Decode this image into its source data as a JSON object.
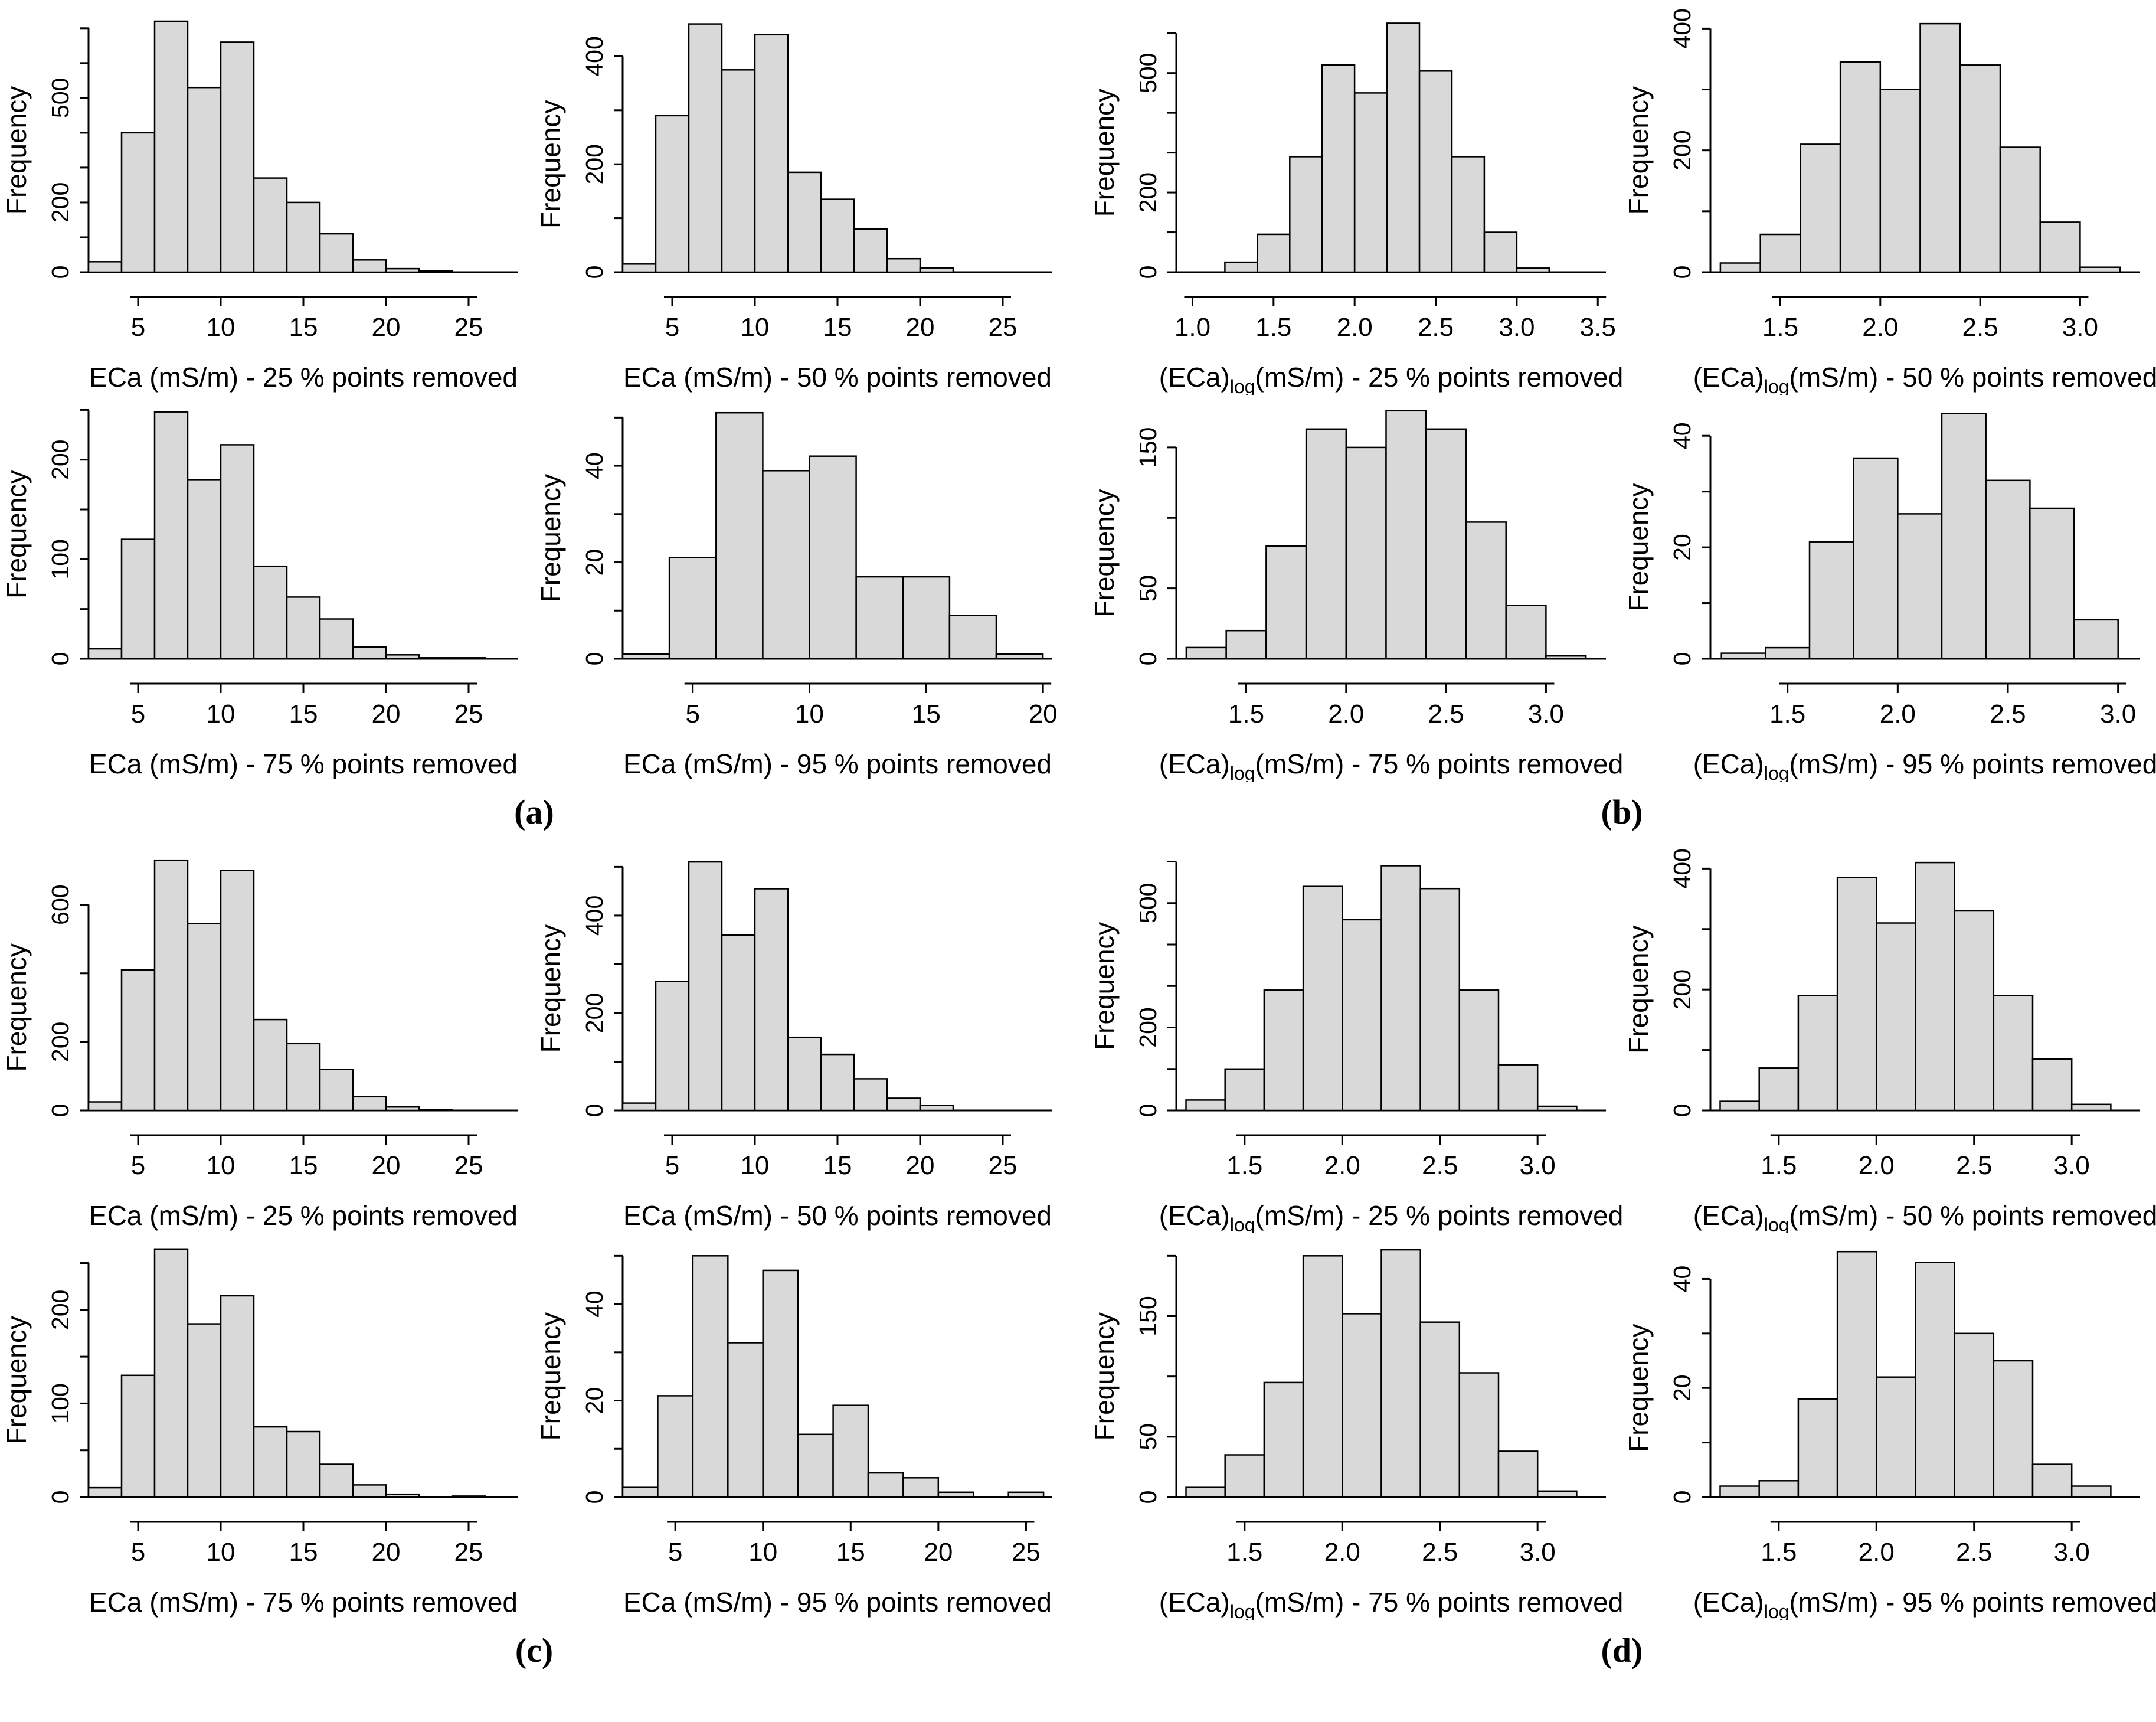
{
  "figure": {
    "ylabel": "Frequency",
    "bar_fill": "#d9d9d9",
    "bar_stroke": "#000000",
    "text_color": "#000000",
    "group_labels": [
      "(a)",
      "(b)",
      "(c)",
      "(d)"
    ]
  },
  "chart_data": [
    {
      "id": "a-25",
      "group": "a",
      "type": "bar",
      "xlabel": "ECa (mS/m) - 25 % points removed",
      "xlabel_parts": {
        "pre": "ECa (mS/m) - 25 % points removed",
        "sub": "",
        "post": ""
      },
      "ylabel": "Frequency",
      "bins": {
        "start": 2,
        "width": 2,
        "counts": [
          30,
          400,
          720,
          530,
          660,
          270,
          200,
          110,
          35,
          10,
          3
        ]
      },
      "x_ticks": [
        5,
        10,
        15,
        20,
        25
      ],
      "x_range": [
        2,
        28
      ],
      "y_ticks": {
        "step": 100,
        "max": 700
      },
      "y_labeled": [
        0,
        200,
        500
      ],
      "ylim": 720
    },
    {
      "id": "a-50",
      "group": "a",
      "type": "bar",
      "xlabel": "ECa (mS/m) - 50 % points removed",
      "xlabel_parts": {
        "pre": "ECa (mS/m) - 50 % points removed",
        "sub": "",
        "post": ""
      },
      "ylabel": "Frequency",
      "bins": {
        "start": 2,
        "width": 2,
        "counts": [
          15,
          290,
          460,
          375,
          440,
          185,
          135,
          80,
          25,
          8
        ]
      },
      "x_ticks": [
        5,
        10,
        15,
        20,
        25
      ],
      "x_range": [
        2,
        28
      ],
      "y_ticks": {
        "step": 100,
        "max": 400
      },
      "y_labeled": [
        0,
        200,
        400
      ],
      "ylim": 465
    },
    {
      "id": "b-25",
      "group": "b",
      "type": "bar",
      "xlabel": "(ECa)log(mS/m) - 25 % points removed",
      "xlabel_parts": {
        "pre": "(ECa)",
        "sub": "log",
        "post": "(mS/m) - 25 % points removed"
      },
      "ylabel": "Frequency",
      "bins": {
        "start": 1.2,
        "width": 0.2,
        "counts": [
          25,
          95,
          290,
          520,
          450,
          625,
          505,
          290,
          100,
          10
        ]
      },
      "x_ticks": [
        1.0,
        1.5,
        2.0,
        2.5,
        3.0,
        3.5
      ],
      "x_range": [
        0.9,
        3.55
      ],
      "y_ticks": {
        "step": 100,
        "max": 600
      },
      "y_labeled": [
        0,
        200,
        500
      ],
      "ylim": 630
    },
    {
      "id": "b-50",
      "group": "b",
      "type": "bar",
      "xlabel": "(ECa)log(mS/m) - 50 % points removed",
      "xlabel_parts": {
        "pre": "(ECa)",
        "sub": "log",
        "post": "(mS/m) - 50 % points removed"
      },
      "ylabel": "Frequency",
      "bins": {
        "start": 1.2,
        "width": 0.2,
        "counts": [
          15,
          62,
          210,
          345,
          300,
          408,
          340,
          205,
          82,
          8
        ]
      },
      "x_ticks": [
        1.5,
        2.0,
        2.5,
        3.0
      ],
      "x_range": [
        1.15,
        3.3
      ],
      "y_ticks": {
        "step": 100,
        "max": 400
      },
      "y_labeled": [
        0,
        200,
        400
      ],
      "ylim": 412
    },
    {
      "id": "a-75",
      "group": "a",
      "type": "bar",
      "xlabel": "ECa (mS/m) - 75 % points removed",
      "xlabel_parts": {
        "pre": "ECa (mS/m) - 75 % points removed",
        "sub": "",
        "post": ""
      },
      "ylabel": "Frequency",
      "bins": {
        "start": 2,
        "width": 2,
        "counts": [
          10,
          120,
          248,
          180,
          215,
          93,
          62,
          40,
          12,
          4,
          1,
          1
        ]
      },
      "x_ticks": [
        5,
        10,
        15,
        20,
        25
      ],
      "x_range": [
        2,
        28
      ],
      "y_ticks": {
        "step": 50,
        "max": 250
      },
      "y_labeled": [
        0,
        100,
        200
      ],
      "ylim": 252
    },
    {
      "id": "a-95",
      "group": "a",
      "type": "bar",
      "xlabel": "ECa (mS/m) - 95 % points removed",
      "xlabel_parts": {
        "pre": "ECa (mS/m) - 95 % points removed",
        "sub": "",
        "post": ""
      },
      "ylabel": "Frequency",
      "bins": {
        "start": 2,
        "width": 2,
        "counts": [
          1,
          21,
          51,
          39,
          42,
          17,
          17,
          9,
          1
        ]
      },
      "x_ticks": [
        5,
        10,
        15,
        20
      ],
      "x_range": [
        2,
        20.4
      ],
      "y_ticks": {
        "step": 10,
        "max": 50
      },
      "y_labeled": [
        0,
        20,
        40
      ],
      "ylim": 52
    },
    {
      "id": "b-75",
      "group": "b",
      "type": "bar",
      "xlabel": "(ECa)log(mS/m) - 75 % points removed",
      "xlabel_parts": {
        "pre": "(ECa)",
        "sub": "log",
        "post": "(mS/m) - 75 % points removed"
      },
      "ylabel": "Frequency",
      "bins": {
        "start": 1.2,
        "width": 0.2,
        "counts": [
          8,
          20,
          80,
          163,
          150,
          176,
          163,
          97,
          38,
          2
        ]
      },
      "x_ticks": [
        1.5,
        2.0,
        2.5,
        3.0
      ],
      "x_range": [
        1.15,
        3.3
      ],
      "y_ticks": {
        "step": 50,
        "max": 150
      },
      "y_labeled": [
        0,
        50,
        150
      ],
      "ylim": 178
    },
    {
      "id": "b-95",
      "group": "b",
      "type": "bar",
      "xlabel": "(ECa)log(mS/m) - 95 % points removed",
      "xlabel_parts": {
        "pre": "(ECa)",
        "sub": "log",
        "post": "(mS/m) - 95 % points removed"
      },
      "ylabel": "Frequency",
      "bins": {
        "start": 1.2,
        "width": 0.2,
        "counts": [
          1,
          2,
          21,
          36,
          26,
          44,
          32,
          27,
          7
        ]
      },
      "x_ticks": [
        1.5,
        2.0,
        2.5,
        3.0
      ],
      "x_range": [
        1.15,
        3.1
      ],
      "y_ticks": {
        "step": 10,
        "max": 40
      },
      "y_labeled": [
        0,
        20,
        40
      ],
      "ylim": 45
    },
    {
      "id": "c-25",
      "group": "c",
      "type": "bar",
      "xlabel": "ECa (mS/m) - 25 % points removed",
      "xlabel_parts": {
        "pre": "ECa (mS/m) - 25 % points removed",
        "sub": "",
        "post": ""
      },
      "ylabel": "Frequency",
      "bins": {
        "start": 2,
        "width": 2,
        "counts": [
          25,
          410,
          730,
          545,
          700,
          265,
          195,
          120,
          40,
          10,
          3
        ]
      },
      "x_ticks": [
        5,
        10,
        15,
        20,
        25
      ],
      "x_range": [
        2,
        28
      ],
      "y_ticks": {
        "step": 200,
        "max": 600
      },
      "y_labeled": [
        0,
        200,
        600
      ],
      "ylim": 732
    },
    {
      "id": "c-50",
      "group": "c",
      "type": "bar",
      "xlabel": "ECa (mS/m) - 50 % points removed",
      "xlabel_parts": {
        "pre": "ECa (mS/m) - 50 % points removed",
        "sub": "",
        "post": ""
      },
      "ylabel": "Frequency",
      "bins": {
        "start": 2,
        "width": 2,
        "counts": [
          15,
          265,
          510,
          360,
          455,
          150,
          115,
          65,
          25,
          10
        ]
      },
      "x_ticks": [
        5,
        10,
        15,
        20,
        25
      ],
      "x_range": [
        2,
        28
      ],
      "y_ticks": {
        "step": 100,
        "max": 500
      },
      "y_labeled": [
        0,
        200,
        400
      ],
      "ylim": 515
    },
    {
      "id": "d-25",
      "group": "d",
      "type": "bar",
      "xlabel": "(ECa)log(mS/m) - 25 % points removed",
      "xlabel_parts": {
        "pre": "(ECa)",
        "sub": "log",
        "post": "(mS/m) - 25 % points removed"
      },
      "ylabel": "Frequency",
      "bins": {
        "start": 1.2,
        "width": 0.2,
        "counts": [
          25,
          100,
          290,
          540,
          460,
          590,
          535,
          290,
          110,
          10
        ]
      },
      "x_ticks": [
        1.5,
        2.0,
        2.5,
        3.0
      ],
      "x_range": [
        1.15,
        3.35
      ],
      "y_ticks": {
        "step": 100,
        "max": 600
      },
      "y_labeled": [
        0,
        200,
        500
      ],
      "ylim": 605
    },
    {
      "id": "d-50",
      "group": "d",
      "type": "bar",
      "xlabel": "(ECa)log(mS/m) - 50 % points removed",
      "xlabel_parts": {
        "pre": "(ECa)",
        "sub": "log",
        "post": "(mS/m) - 50 % points removed"
      },
      "ylabel": "Frequency",
      "bins": {
        "start": 1.2,
        "width": 0.2,
        "counts": [
          15,
          70,
          190,
          385,
          310,
          410,
          330,
          190,
          85,
          10
        ]
      },
      "x_ticks": [
        1.5,
        2.0,
        2.5,
        3.0
      ],
      "x_range": [
        1.15,
        3.35
      ],
      "y_ticks": {
        "step": 100,
        "max": 400
      },
      "y_labeled": [
        0,
        200,
        400
      ],
      "ylim": 415
    },
    {
      "id": "c-75",
      "group": "c",
      "type": "bar",
      "xlabel": "ECa (mS/m) - 75 % points removed",
      "xlabel_parts": {
        "pre": "ECa (mS/m) - 75 % points removed",
        "sub": "",
        "post": ""
      },
      "ylabel": "Frequency",
      "bins": {
        "start": 2,
        "width": 2,
        "counts": [
          10,
          130,
          265,
          185,
          215,
          75,
          70,
          35,
          13,
          3,
          0,
          1
        ]
      },
      "x_ticks": [
        5,
        10,
        15,
        20,
        25
      ],
      "x_range": [
        2,
        28
      ],
      "y_ticks": {
        "step": 50,
        "max": 250
      },
      "y_labeled": [
        0,
        100,
        200
      ],
      "ylim": 268
    },
    {
      "id": "c-95",
      "group": "c",
      "type": "bar",
      "xlabel": "ECa (mS/m) - 95 % points removed",
      "xlabel_parts": {
        "pre": "ECa (mS/m) - 95 % points removed",
        "sub": "",
        "post": ""
      },
      "ylabel": "Frequency",
      "bins": {
        "start": 2,
        "width": 2,
        "counts": [
          2,
          21,
          50,
          32,
          47,
          13,
          19,
          5,
          4,
          1,
          0,
          1
        ]
      },
      "x_ticks": [
        5,
        10,
        15,
        20,
        25
      ],
      "x_range": [
        2,
        26.5
      ],
      "y_ticks": {
        "step": 10,
        "max": 50
      },
      "y_labeled": [
        0,
        20,
        40
      ],
      "ylim": 52
    },
    {
      "id": "d-75",
      "group": "d",
      "type": "bar",
      "xlabel": "(ECa)log(mS/m) - 75 % points removed",
      "xlabel_parts": {
        "pre": "(ECa)",
        "sub": "log",
        "post": "(mS/m) - 75 % points removed"
      },
      "ylabel": "Frequency",
      "bins": {
        "start": 1.2,
        "width": 0.2,
        "counts": [
          8,
          35,
          95,
          200,
          152,
          205,
          145,
          103,
          38,
          5
        ]
      },
      "x_ticks": [
        1.5,
        2.0,
        2.5,
        3.0
      ],
      "x_range": [
        1.15,
        3.35
      ],
      "y_ticks": {
        "step": 50,
        "max": 200
      },
      "y_labeled": [
        0,
        50,
        150
      ],
      "ylim": 208
    },
    {
      "id": "d-95",
      "group": "d",
      "type": "bar",
      "xlabel": "(ECa)log(mS/m) - 95 % points removed",
      "xlabel_parts": {
        "pre": "(ECa)",
        "sub": "log",
        "post": "(mS/m) - 95 % points removed"
      },
      "ylabel": "Frequency",
      "bins": {
        "start": 1.2,
        "width": 0.2,
        "counts": [
          2,
          3,
          18,
          45,
          22,
          43,
          30,
          25,
          6,
          2
        ]
      },
      "x_ticks": [
        1.5,
        2.0,
        2.5,
        3.0
      ],
      "x_range": [
        1.15,
        3.35
      ],
      "y_ticks": {
        "step": 10,
        "max": 40
      },
      "y_labeled": [
        0,
        20,
        40
      ],
      "ylim": 46
    }
  ]
}
